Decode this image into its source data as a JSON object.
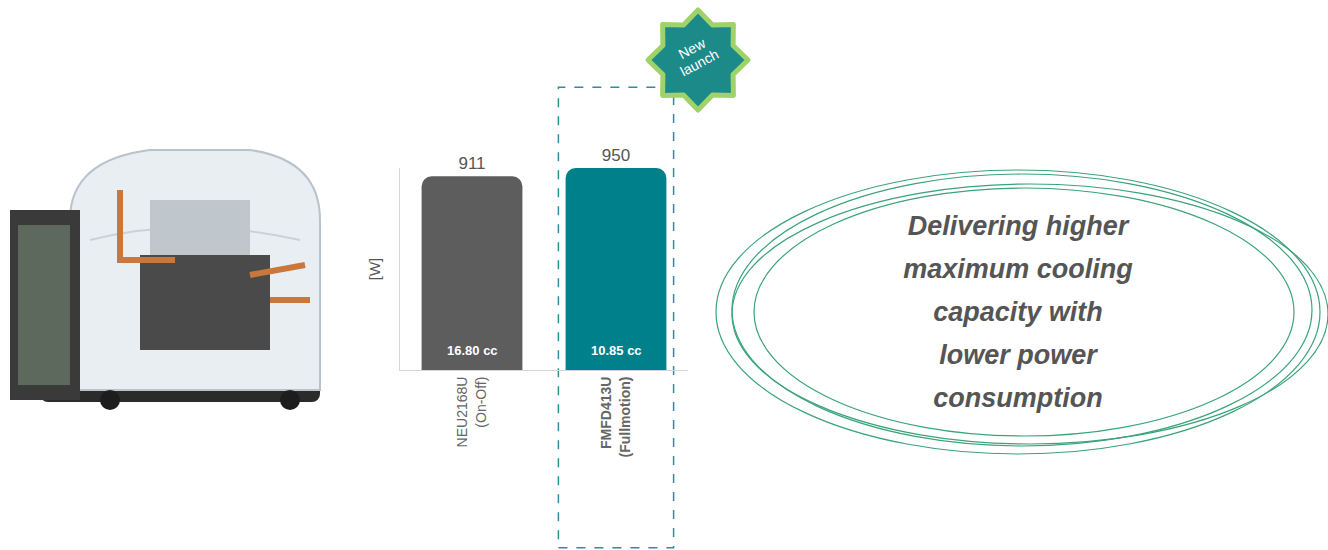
{
  "chart_data": {
    "type": "bar",
    "categories": [
      "NEU2168U (On-Off)",
      "FMFD413U (Fullmotion)"
    ],
    "values": [
      911,
      950
    ],
    "colors": [
      "#5d5d5d",
      "#00808a"
    ],
    "inner_labels": [
      "16.80 cc",
      "10.85 cc"
    ],
    "y_label": "[W]",
    "ylim": [
      0,
      950
    ],
    "data_labels": true,
    "tick_labels": "x",
    "grid": false
  },
  "badge": "New launch",
  "callout": [
    "Delivering higher",
    "maximum cooling",
    "capacity with",
    "lower power",
    "consumption"
  ]
}
